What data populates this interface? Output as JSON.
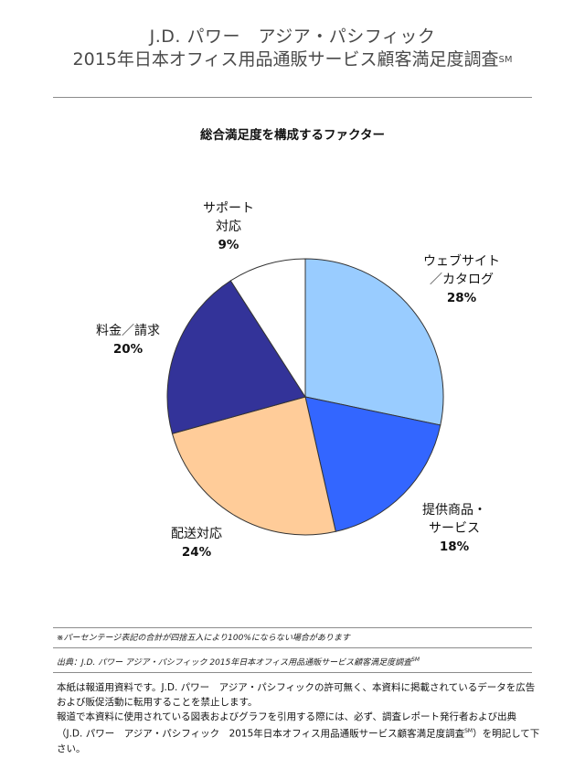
{
  "header": {
    "line1": "J.D. パワー　アジア・パシフィック",
    "line2": "2015年日本オフィス用品通販サービス顧客満足度調査",
    "line2_sup": "SM"
  },
  "chart_data": {
    "type": "pie",
    "title": "総合満足度を構成するファクター",
    "slices": [
      {
        "label_lines": [
          "ウェブサイト",
          "／カタログ"
        ],
        "value": 28,
        "percent_label": "28%",
        "color": "#99ccff"
      },
      {
        "label_lines": [
          "提供商品・",
          "サービス"
        ],
        "value": 18,
        "percent_label": "18%",
        "color": "#3366ff"
      },
      {
        "label_lines": [
          "配送対応"
        ],
        "value": 24,
        "percent_label": "24%",
        "color": "#ffcc99"
      },
      {
        "label_lines": [
          "料金／請求"
        ],
        "value": 20,
        "percent_label": "20%",
        "color": "#333399"
      },
      {
        "label_lines": [
          "サポート",
          "対応"
        ],
        "value": 9,
        "percent_label": "9%",
        "color": "#ffffff"
      }
    ],
    "start": "12 o'clock",
    "direction": "clockwise",
    "outline_color": "#333333"
  },
  "footnotes": {
    "rounding_note": "※パーセンテージ表記の合計が四捨五入により100%にならない場合があります",
    "source_prefix": "出典：",
    "source_text": "J.D. パワー アジア・パシフィック 2015年日本オフィス用品通販サービス顧客満足度調査",
    "source_sup": "SM"
  },
  "disclaimer": {
    "line1": "本紙は報道用資料です。J.D. パワー　アジア・パシフィックの許可無く、本資料に掲載されているデータを広告",
    "line2": "および販促活動に転用することを禁止します。",
    "line3": "報道で本資料に使用されている図表およびグラフを引用する際には、必ず、調査レポート発行者および出典",
    "line4a": "（J.D. パワー　アジア・パシフィック　2015年日本オフィス用品通販サービス顧客満足度調査",
    "line4_sup": "SM",
    "line4b": "）を明記して下",
    "line5": "さい。"
  }
}
